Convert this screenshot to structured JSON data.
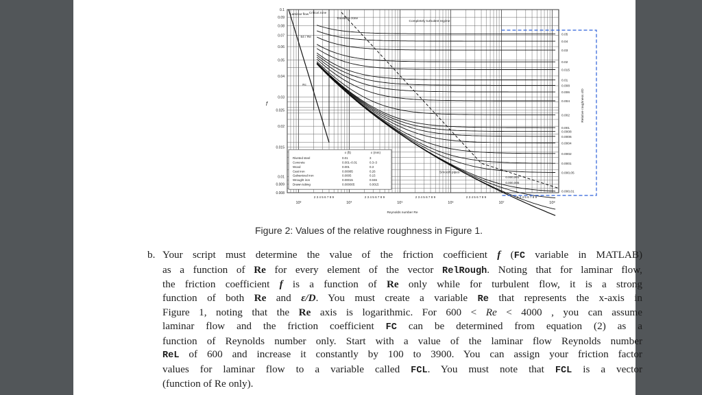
{
  "figure": {
    "y_ticks": [
      "0.1",
      "0.09",
      "0.08",
      "0.07",
      "0.06",
      "0.05",
      "0.04",
      "0.03",
      "0.025",
      "0.02",
      "0.015",
      "0.01",
      "0.009",
      "0.008"
    ],
    "y_axis_label": "f",
    "x_decades": [
      "10³",
      "10⁴",
      "10⁵",
      "10⁶",
      "10⁷",
      "10⁸"
    ],
    "x_minor_labels": "2 3 4 5 6 7 8 9",
    "x_axis_label": "Reynolds number Re",
    "right_axis_label": "Relative roughness ε/D",
    "right_ticks": [
      "0.05",
      "0.04",
      "0.03",
      "0.02",
      "0.015",
      "0.01",
      "0.008",
      "0.006",
      "0.004",
      "0.002",
      "0.001",
      "0.0008",
      "0.0006",
      "0.0004",
      "0.0002",
      "0.0001",
      "0.000,05",
      "0.000,01"
    ],
    "small_labels": [
      "0.000,001",
      "0.000,005"
    ],
    "zones": {
      "laminar": "Laminar flow",
      "critical": "Critical zone",
      "transition": "Transition zone",
      "turbulent": "Completely turbulent regime",
      "laminar_eq": "64 / Re",
      "rc": "Rc",
      "smooth": "Smooth pipes"
    },
    "material_table": {
      "head_ft": "ε (ft)",
      "head_mm": "ε (mm)",
      "rows": [
        [
          "Riveted steel",
          "0.01",
          "3"
        ],
        [
          "Concrete",
          "0.001–0.01",
          "0.3–3"
        ],
        [
          "Wood",
          "0.001",
          "0.3"
        ],
        [
          "Cast iron",
          "0.00085",
          "0.26"
        ],
        [
          "Galvanized iron",
          "0.0005",
          "0.15"
        ],
        [
          "Wrought iron",
          "0.00015",
          "0.046"
        ],
        [
          "Drawn tubing",
          "0.000005",
          "0.0015"
        ]
      ]
    }
  },
  "caption": "Figure 2: Values of the relative roughness in Figure 1.",
  "paragraph": {
    "marker": "b.",
    "l1a": "Your script must determine the value of the friction coefficient ",
    "l1f": "f",
    "l1b": " (",
    "l1fc": "FC",
    "l1c": " variable  in MATLAB)",
    "l2a": "as a function of ",
    "l2re": "Re",
    "l2b": " for every element of the vector ",
    "l2rr": "RelRough",
    "l2c": ". Noting that for laminar flow,",
    "l3a": "the friction coefficient ",
    "l3f": "f",
    "l3b": " is a function of ",
    "l3re": "Re",
    "l3c": " only while for turbulent flow, it is a strong",
    "l4a": "function of both ",
    "l4re": "Re",
    "l4b": " and ",
    "l4ed": "ε/D",
    "l4c": ". You must create a variable ",
    "l4rev": "Re",
    "l4d": " that represents the x-axis in",
    "l5a": "Figure 1, noting that the ",
    "l5re": "Re",
    "l5b": " axis is logarithmic. For 600 < ",
    "l5rei": "Re",
    "l5c": " < 4000 , you can assume",
    "l6a": "laminar flow and the friction coefficient ",
    "l6fc": "FC",
    "l6b": "  can be determined from equation (2) as a",
    "l7": "function of Reynolds number only. Start with a value of the laminar flow Reynolds number",
    "l8a": "ReL",
    "l8b": "  of 600 and increase it constantly by 100 to 3900. You can assign your friction factor",
    "l9a": "values for laminar flow to a variable called ",
    "l9fcl": "FCL",
    "l9b": ". You must note that ",
    "l9fcl2": "FCL",
    "l9c": "  is a vector",
    "l10": "(function of Re only)."
  }
}
